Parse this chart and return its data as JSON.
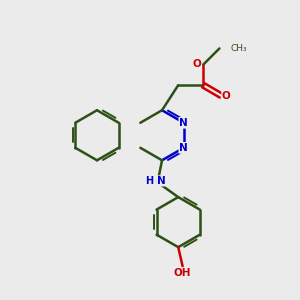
{
  "background_color": "#ebebeb",
  "bond_color": "#2d5016",
  "nitrogen_color": "#0000cc",
  "oxygen_color": "#cc0000",
  "line_width": 1.8,
  "double_lw": 1.4,
  "figsize": [
    3.0,
    3.0
  ],
  "dpi": 100,
  "xlim": [
    0,
    10
  ],
  "ylim": [
    0,
    10
  ]
}
